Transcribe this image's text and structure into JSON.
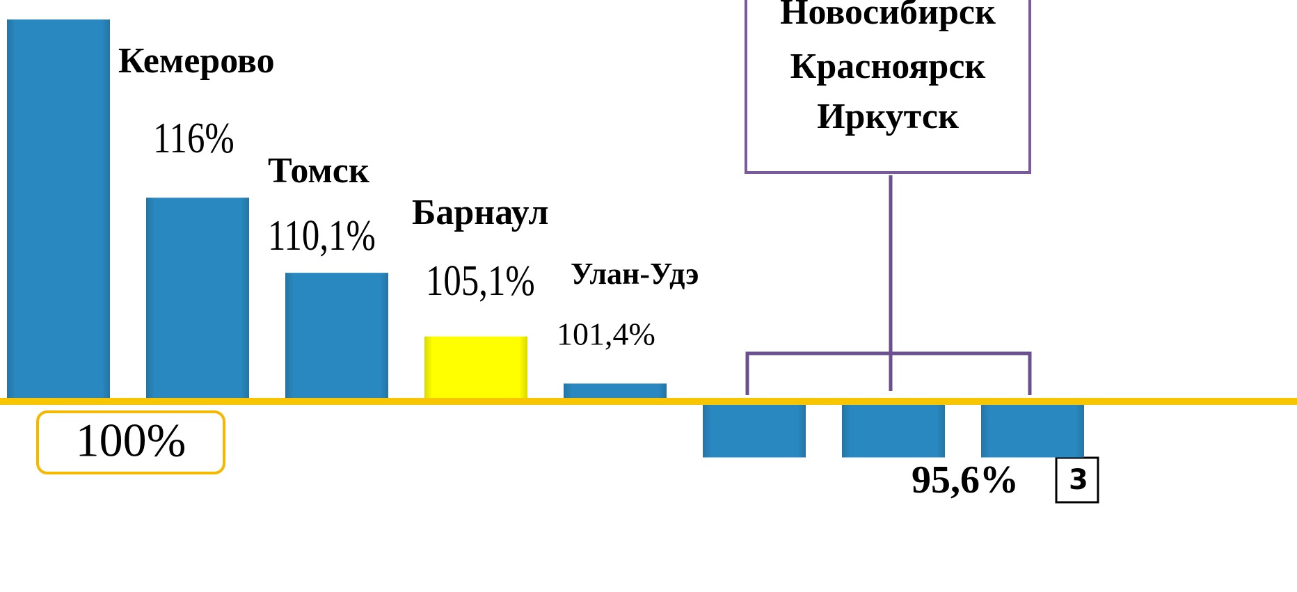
{
  "chart_data": {
    "type": "bar",
    "categories": [
      null,
      "Кемерово",
      "Томск",
      "Барнаул",
      "Улан-Удэ",
      "Новосибирск",
      "Красноярск",
      "Иркутск"
    ],
    "values": [
      130,
      116,
      110.1,
      105.1,
      101.4,
      95.6,
      95.6,
      95.6
    ],
    "value_labels": [
      null,
      "116%",
      "110,1%",
      "105,1%",
      "101,4%",
      "95,6%",
      null,
      null
    ],
    "colors": [
      "#2a88c0",
      "#2a88c0",
      "#2a88c0",
      "#ffff00",
      "#2a88c0",
      "#2a88c0",
      "#2a88c0",
      "#2a88c0"
    ],
    "baseline": 100,
    "baseline_label": "100%",
    "baseline_color": "#f7c600",
    "page_number": 3
  }
}
